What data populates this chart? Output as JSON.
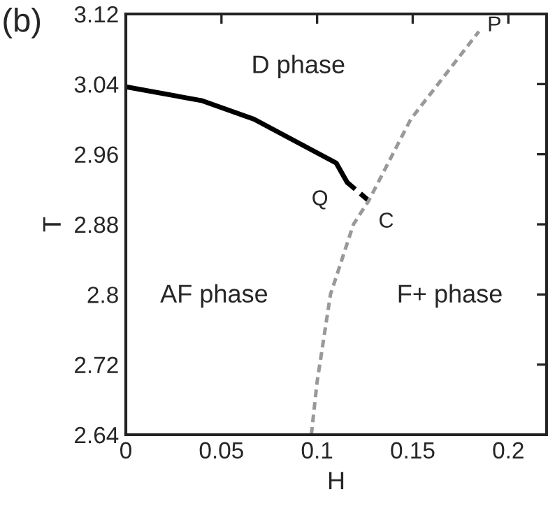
{
  "chart_data": {
    "type": "line",
    "xlabel": "H",
    "ylabel": "T",
    "xlim": [
      0,
      0.22
    ],
    "ylim": [
      2.64,
      3.12
    ],
    "xticks": [
      0,
      0.05,
      0.1,
      0.15,
      0.2
    ],
    "yticks": [
      2.64,
      2.72,
      2.8,
      2.88,
      2.96,
      3.04,
      3.12
    ],
    "grid": false,
    "legend": false,
    "marker": "none",
    "series": [
      {
        "color": "#000000",
        "line_style": "solid",
        "x": [
          0,
          0.04,
          0.067,
          0.11,
          0.1157
        ],
        "values": [
          3.037,
          3.021,
          3.0,
          2.95,
          2.928
        ]
      },
      {
        "color": "#000000",
        "line_style": "dashed",
        "x": [
          0.1157,
          0.127
        ],
        "values": [
          2.928,
          2.907
        ]
      },
      {
        "color": "#999999",
        "line_style": "dashed",
        "x": [
          0.097,
          0.1,
          0.107,
          0.119,
          0.127,
          0.149,
          0.1846
        ],
        "values": [
          2.64,
          2.7,
          2.8,
          2.88,
          2.907,
          3.0,
          3.1
        ]
      }
    ],
    "annotations": [
      "(b)",
      "D phase",
      "AF phase",
      "F+ phase",
      {
        "text": "Q",
        "x": 0.1157,
        "y": 2.928
      },
      {
        "text": "C",
        "x": 0.127,
        "y": 2.907
      },
      {
        "text": "P",
        "x": 0.1846,
        "y": 3.1
      }
    ]
  }
}
